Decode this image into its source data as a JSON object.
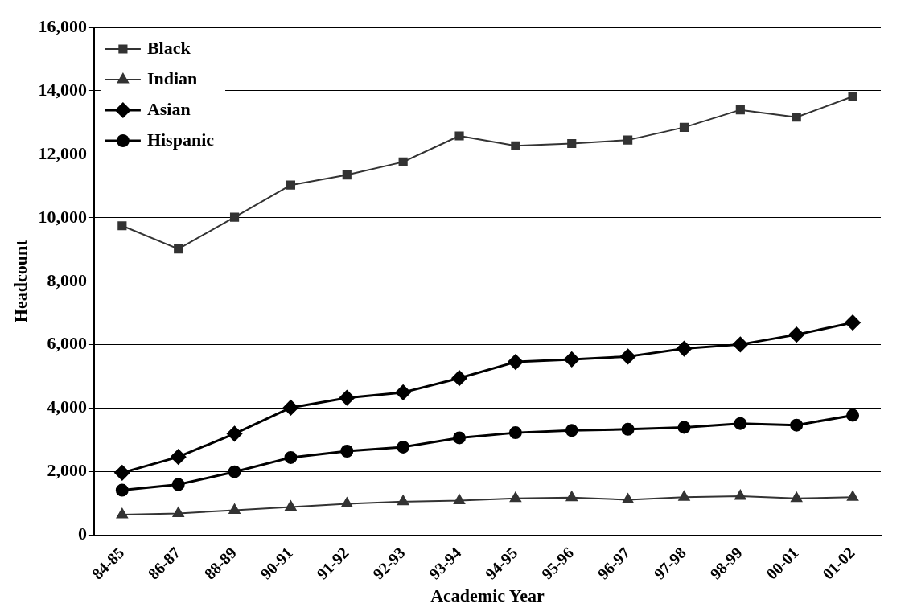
{
  "chart_data": {
    "type": "line",
    "xlabel": "Academic Year",
    "ylabel": "Headcount",
    "categories": [
      "84-85",
      "86-87",
      "88-89",
      "90-91",
      "91-92",
      "92-93",
      "93-94",
      "94-95",
      "95-96",
      "96-97",
      "97-98",
      "98-99",
      "00-01",
      "01-02"
    ],
    "series": [
      {
        "name": "Black",
        "color": "#333333",
        "marker": "square",
        "values": [
          9750,
          9020,
          10020,
          11030,
          11350,
          11760,
          12580,
          12270,
          12340,
          12450,
          12850,
          13400,
          13170,
          13820
        ]
      },
      {
        "name": "Indian",
        "color": "#333333",
        "marker": "triangle",
        "values": [
          650,
          690,
          790,
          890,
          990,
          1060,
          1090,
          1160,
          1190,
          1120,
          1200,
          1230,
          1160,
          1200
        ]
      },
      {
        "name": "Asian",
        "color": "#000000",
        "marker": "diamond",
        "values": [
          1970,
          2470,
          3200,
          4020,
          4330,
          4500,
          4950,
          5460,
          5540,
          5630,
          5880,
          6010,
          6320,
          6700
        ]
      },
      {
        "name": "Hispanic",
        "color": "#000000",
        "marker": "circle",
        "values": [
          1420,
          1600,
          2000,
          2450,
          2650,
          2780,
          3070,
          3230,
          3300,
          3340,
          3400,
          3520,
          3470,
          3780
        ]
      }
    ],
    "ylim": [
      0,
      16000
    ],
    "yticks": [
      0,
      {
        "value": 2000,
        "label": "2,000"
      },
      {
        "value": 4000,
        "label": "4,000"
      },
      {
        "value": 6000,
        "label": "6,000"
      },
      {
        "value": 8000,
        "label": "8,000"
      },
      {
        "value": 10000,
        "label": "10,000"
      },
      {
        "value": 12000,
        "label": "12,000"
      },
      {
        "value": 14000,
        "label": "14,000"
      },
      {
        "value": 16000,
        "label": "16,000"
      }
    ],
    "grid": "y",
    "legend": "top left",
    "line_style": "solid"
  }
}
